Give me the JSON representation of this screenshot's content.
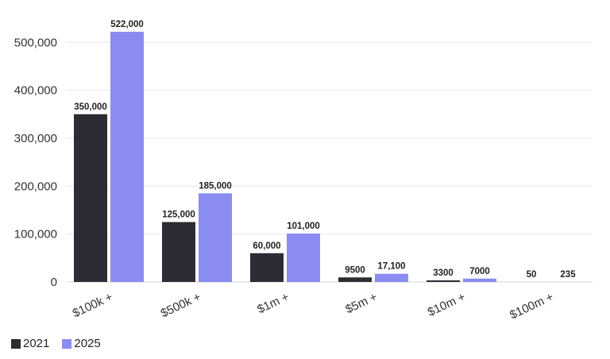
{
  "chart_data": {
    "type": "bar",
    "categories": [
      "$100k +",
      "$500k +",
      "$1m +",
      "$5m +",
      "$10m +",
      "$100m +"
    ],
    "series": [
      {
        "name": "2021",
        "color": "#2d2c34",
        "values": [
          350000,
          125000,
          60000,
          9500,
          3300,
          50
        ]
      },
      {
        "name": "2025",
        "color": "#8a8cf2",
        "values": [
          522000,
          185000,
          101000,
          17100,
          7000,
          235
        ]
      }
    ],
    "data_labels": [
      [
        "350,000",
        "125,000",
        "60,000",
        "9500",
        "3300",
        "50"
      ],
      [
        "522,000",
        "185,000",
        "101,000",
        "17,100",
        "7000",
        "235"
      ]
    ],
    "y_ticks": [
      0,
      100000,
      200000,
      300000,
      400000,
      500000
    ],
    "y_tick_labels": [
      "0",
      "100,000",
      "200,000",
      "300,000",
      "400,000",
      "500,000"
    ],
    "ylim": [
      0,
      522000
    ],
    "grid": true,
    "legend_position": "bottom-left"
  }
}
